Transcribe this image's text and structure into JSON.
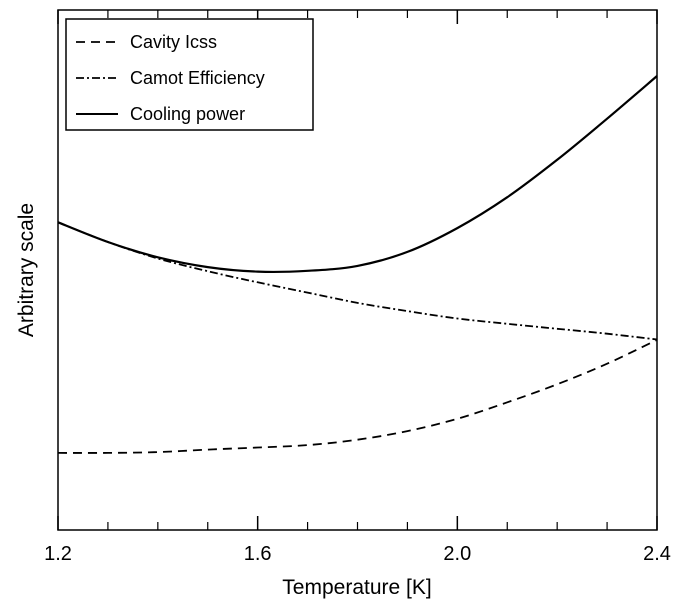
{
  "chart_data": {
    "type": "line",
    "xlabel": "Temperature [K]",
    "ylabel": "Arbitrary scale",
    "xlim": [
      1.2,
      2.4
    ],
    "ylim": [
      0,
      1
    ],
    "x_ticks": [
      1.2,
      1.6,
      2.0,
      2.4
    ],
    "x_tick_labels": [
      "1.2",
      "1.6",
      "2.0",
      "2.4"
    ],
    "x_minor_ticks": [
      1.3,
      1.4,
      1.5,
      1.7,
      1.8,
      1.9,
      2.1,
      2.2,
      2.3
    ],
    "y_tick_labels_shown": false,
    "grid": false,
    "legend": {
      "position": "top-left"
    },
    "series": [
      {
        "name": "Cavity Icss",
        "style": "dashed",
        "x": [
          1.2,
          1.3,
          1.4,
          1.5,
          1.6,
          1.7,
          1.8,
          1.9,
          2.0,
          2.1,
          2.2,
          2.3,
          2.4
        ],
        "y": [
          0.083,
          0.083,
          0.085,
          0.091,
          0.096,
          0.102,
          0.115,
          0.136,
          0.166,
          0.206,
          0.25,
          0.3,
          0.358
        ]
      },
      {
        "name": "Camot Efficiency",
        "style": "dashdot",
        "x": [
          1.2,
          1.3,
          1.4,
          1.5,
          1.6,
          1.7,
          1.8,
          1.9,
          2.0,
          2.1,
          2.2,
          2.3,
          2.4
        ],
        "y": [
          0.644,
          0.596,
          0.556,
          0.525,
          0.498,
          0.473,
          0.448,
          0.428,
          0.41,
          0.397,
          0.385,
          0.373,
          0.359
        ]
      },
      {
        "name": "Cooling power",
        "style": "solid",
        "x": [
          1.2,
          1.3,
          1.4,
          1.5,
          1.6,
          1.7,
          1.8,
          1.9,
          2.0,
          2.1,
          2.2,
          2.3,
          2.4
        ],
        "y": [
          0.644,
          0.596,
          0.559,
          0.535,
          0.524,
          0.526,
          0.538,
          0.572,
          0.63,
          0.705,
          0.796,
          0.896,
          1.0
        ]
      }
    ],
    "series_colors": [
      "#000000",
      "#000000",
      "#000000"
    ]
  }
}
